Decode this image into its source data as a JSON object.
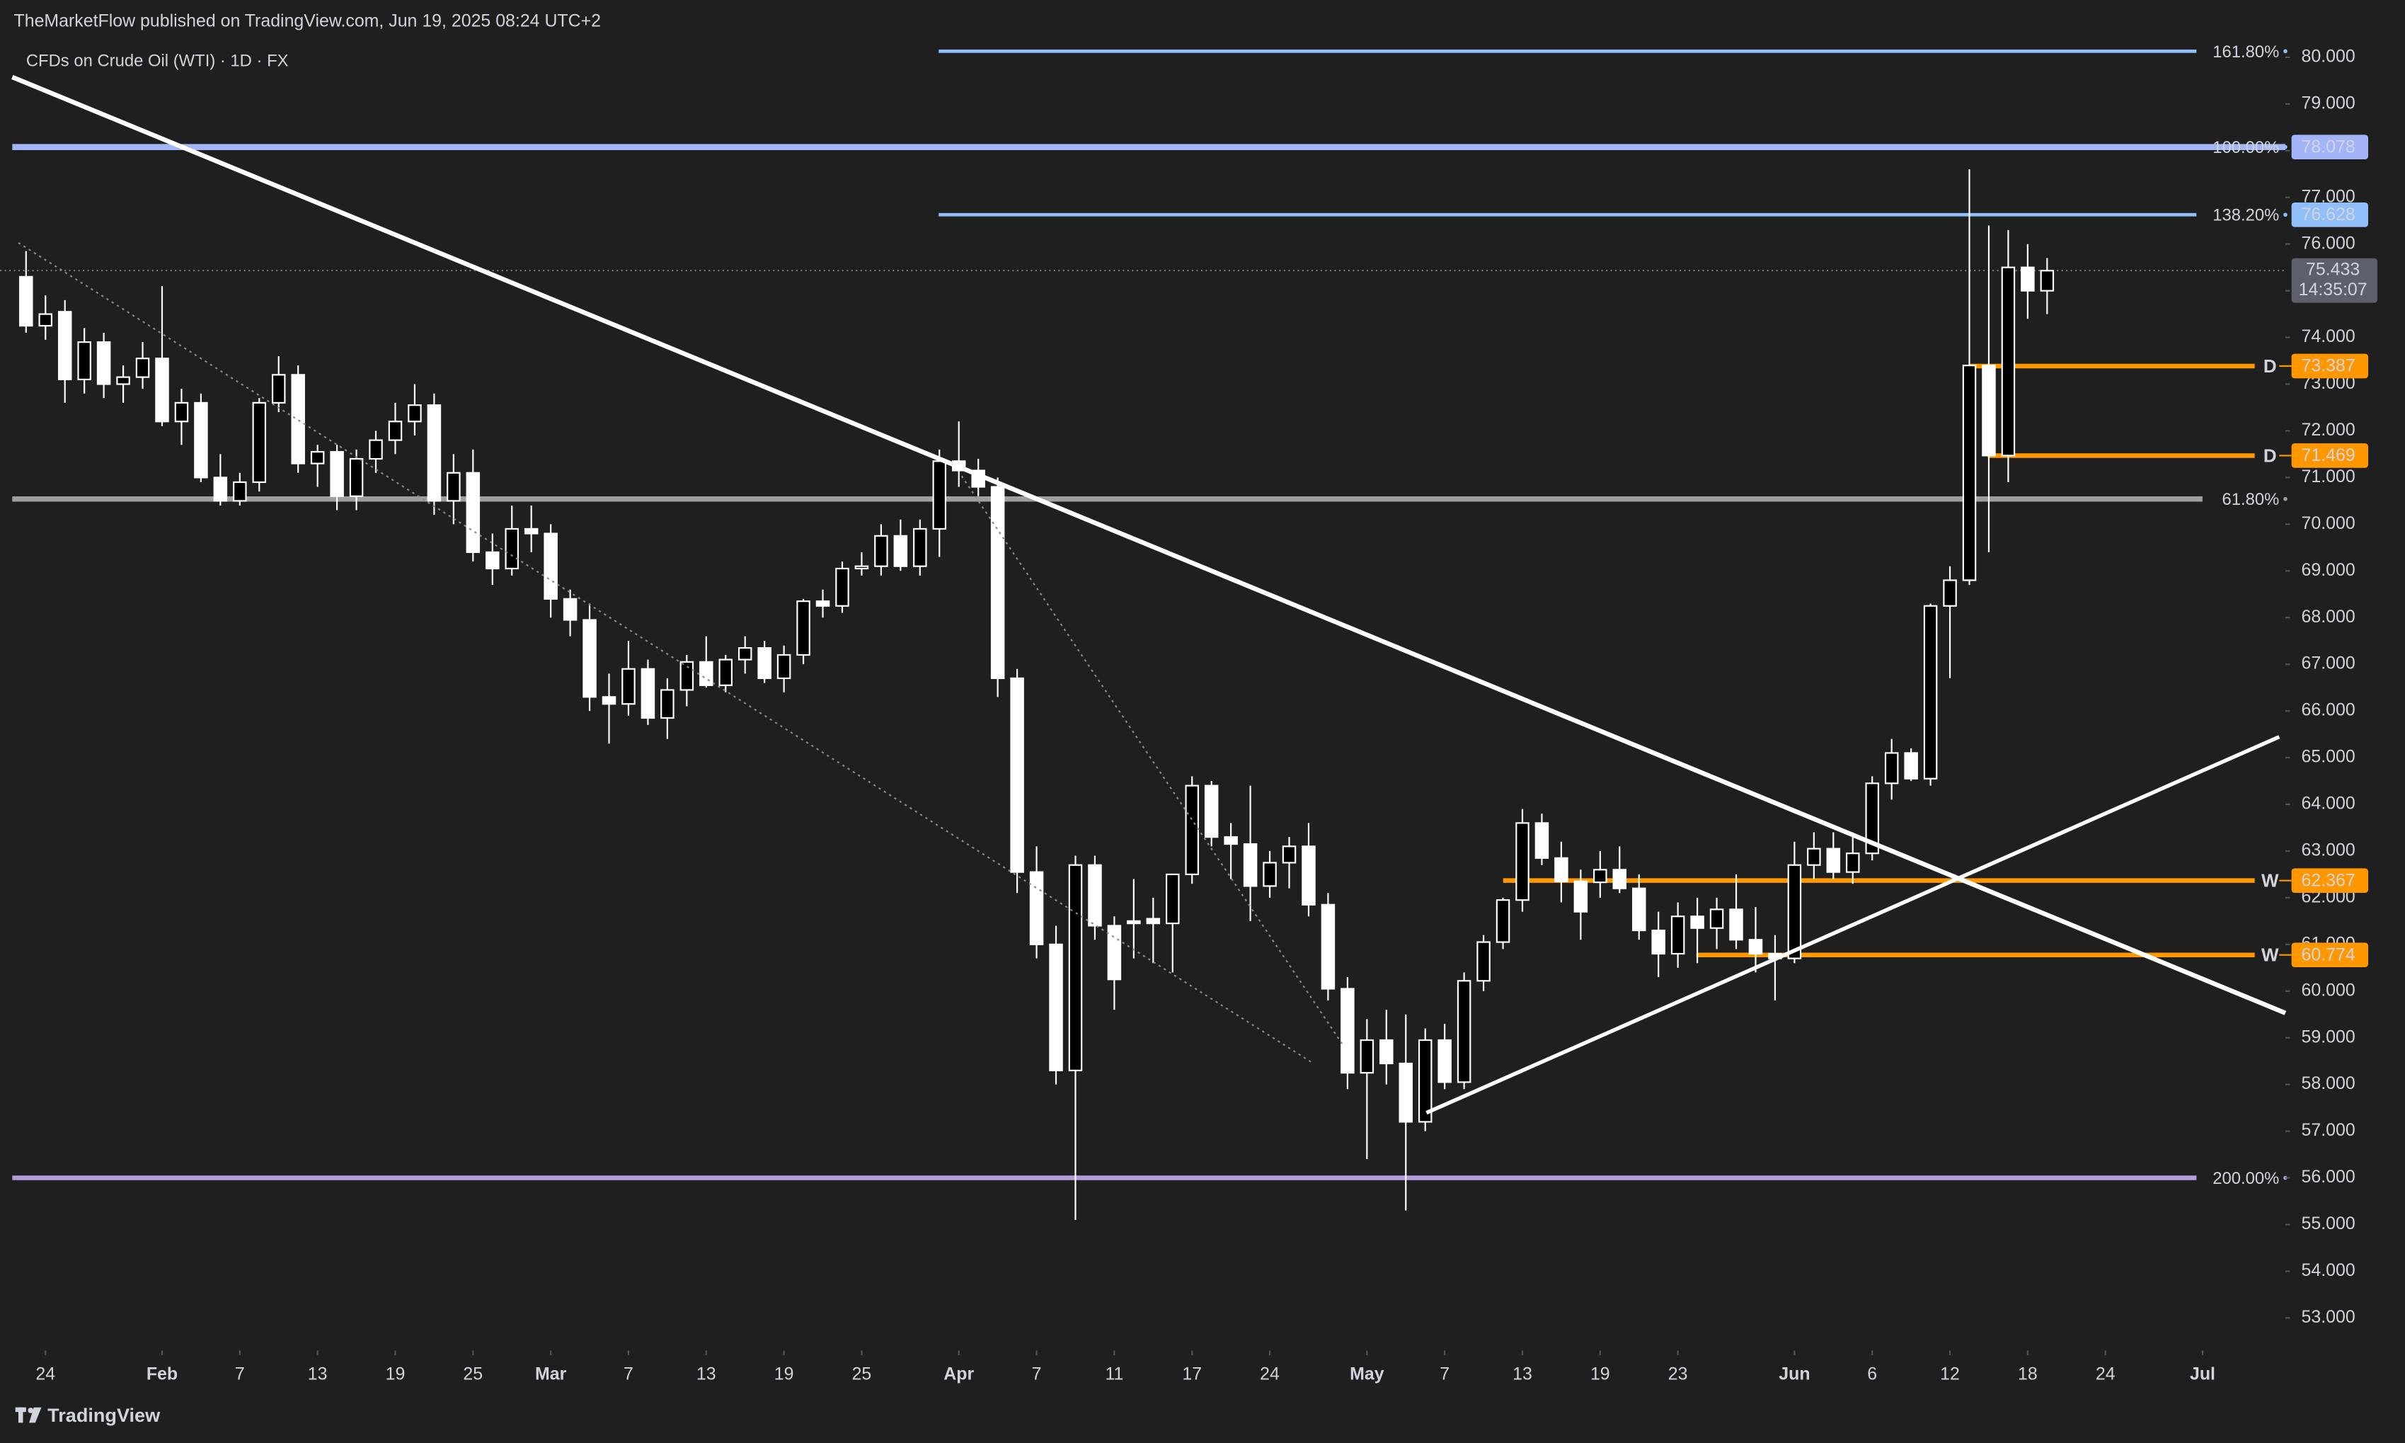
{
  "header": {
    "published": "TheMarketFlow published on TradingView.com, Jun 19, 2025 08:24 UTC+2",
    "symbol": "CFDs on Crude Oil (WTI) · 1D · FX"
  },
  "footer": {
    "brand": "TradingView"
  },
  "chart_data": {
    "type": "candlestick",
    "open": [
      75.3,
      74.25,
      74.55,
      73.1,
      73.9,
      73.0,
      73.15,
      73.55,
      72.2,
      72.6,
      71.0,
      70.5,
      70.9,
      72.6,
      73.2,
      71.3,
      71.55,
      70.6,
      71.4,
      71.8,
      72.2,
      72.55,
      70.5,
      71.1,
      69.4,
      69.05,
      69.9,
      69.8,
      68.4,
      67.95,
      66.3,
      66.15,
      66.9,
      65.85,
      66.45,
      67.05,
      66.55,
      67.1,
      67.35,
      66.7,
      67.2,
      68.35,
      68.25,
      69.05,
      69.1,
      69.75,
      69.1,
      69.9,
      71.35,
      71.15,
      70.8,
      66.7,
      62.55,
      61.0,
      58.3,
      62.7,
      61.4,
      61.5,
      61.55,
      61.45,
      62.5,
      64.4,
      63.3,
      63.15,
      62.25,
      62.75,
      63.1,
      61.85,
      60.05,
      58.25,
      58.95,
      58.45,
      57.2,
      58.95,
      58.05,
      60.22,
      61.05,
      61.95,
      63.6,
      62.85,
      62.35,
      62.33,
      62.6,
      62.2,
      61.3,
      60.8,
      61.6,
      61.35,
      61.75,
      61.1,
      60.8,
      60.7,
      62.7,
      63.05,
      62.55,
      62.95,
      64.45,
      65.1,
      64.55,
      68.25,
      68.8,
      73.4,
      71.47,
      75.5,
      75.0
    ],
    "high": [
      75.85,
      74.9,
      74.8,
      74.2,
      74.1,
      73.4,
      73.9,
      75.1,
      72.9,
      72.8,
      71.5,
      71.1,
      72.7,
      73.6,
      73.4,
      71.7,
      71.7,
      71.6,
      72.0,
      72.6,
      73.0,
      72.8,
      71.5,
      71.6,
      69.8,
      70.4,
      70.4,
      70.0,
      68.6,
      68.3,
      66.8,
      67.5,
      67.1,
      66.7,
      67.2,
      67.6,
      67.2,
      67.6,
      67.5,
      67.4,
      68.4,
      68.6,
      69.2,
      69.4,
      70.0,
      70.1,
      70.1,
      71.6,
      72.2,
      71.4,
      71.0,
      66.9,
      63.1,
      61.4,
      62.9,
      62.9,
      61.6,
      62.4,
      62.0,
      62.5,
      64.6,
      64.5,
      63.6,
      64.4,
      63.0,
      63.3,
      63.6,
      62.1,
      60.3,
      59.4,
      59.6,
      59.5,
      59.2,
      59.3,
      60.4,
      61.2,
      62.0,
      63.9,
      63.8,
      63.2,
      62.6,
      63.0,
      63.1,
      62.5,
      61.7,
      61.9,
      62.0,
      62.0,
      62.5,
      61.8,
      61.2,
      63.2,
      63.4,
      63.4,
      63.4,
      64.6,
      65.4,
      65.2,
      68.3,
      69.1,
      77.6,
      76.4,
      76.3,
      76.0,
      75.7
    ],
    "low": [
      74.1,
      73.95,
      72.6,
      72.8,
      72.7,
      72.6,
      72.9,
      72.1,
      71.7,
      70.9,
      70.4,
      70.4,
      70.7,
      72.4,
      71.1,
      70.8,
      70.3,
      70.3,
      71.1,
      71.5,
      71.9,
      70.2,
      70.0,
      69.2,
      68.7,
      68.9,
      69.4,
      68.0,
      67.6,
      66.0,
      65.3,
      65.9,
      65.7,
      65.4,
      66.1,
      66.5,
      66.4,
      66.8,
      66.6,
      66.4,
      67.0,
      68.0,
      68.1,
      68.9,
      68.9,
      69.0,
      68.9,
      69.3,
      70.8,
      70.6,
      66.3,
      62.1,
      60.7,
      58.0,
      55.1,
      61.1,
      59.6,
      60.7,
      60.6,
      60.4,
      62.3,
      63.1,
      62.4,
      61.5,
      62.0,
      62.2,
      61.6,
      59.8,
      57.9,
      56.4,
      58.0,
      55.3,
      57.0,
      57.9,
      57.9,
      60.0,
      60.9,
      61.7,
      62.7,
      61.9,
      61.1,
      62.0,
      62.1,
      61.1,
      60.3,
      60.5,
      60.6,
      60.9,
      60.9,
      60.4,
      59.8,
      60.6,
      62.4,
      62.4,
      62.3,
      62.8,
      64.1,
      64.5,
      64.4,
      66.7,
      68.7,
      69.4,
      70.9,
      74.4,
      74.5
    ],
    "close": [
      74.25,
      74.5,
      73.1,
      73.9,
      73.0,
      73.15,
      73.55,
      72.2,
      72.6,
      71.0,
      70.5,
      70.9,
      72.6,
      73.2,
      71.3,
      71.55,
      70.6,
      71.4,
      71.8,
      72.2,
      72.55,
      70.5,
      71.1,
      69.4,
      69.05,
      69.9,
      69.8,
      68.4,
      67.95,
      66.3,
      66.15,
      66.9,
      65.85,
      66.45,
      67.05,
      66.55,
      67.1,
      67.35,
      66.7,
      67.2,
      68.35,
      68.25,
      69.05,
      69.1,
      69.75,
      69.1,
      69.9,
      71.35,
      71.15,
      70.8,
      66.7,
      62.55,
      61.0,
      58.3,
      62.7,
      61.4,
      60.25,
      61.45,
      61.45,
      62.5,
      64.4,
      63.3,
      63.15,
      62.25,
      62.75,
      63.1,
      61.85,
      60.05,
      58.25,
      58.95,
      58.45,
      57.2,
      58.95,
      58.05,
      60.22,
      61.05,
      61.95,
      63.6,
      62.85,
      62.35,
      61.7,
      62.6,
      62.2,
      61.3,
      60.8,
      61.6,
      61.35,
      61.75,
      61.1,
      60.8,
      60.7,
      62.7,
      63.05,
      62.55,
      62.95,
      64.45,
      65.1,
      64.55,
      68.25,
      68.8,
      73.4,
      71.47,
      75.5,
      75.0,
      75.43
    ],
    "up_color": "#000000",
    "down_color": "#ffffff",
    "wick_color": "#ffffff",
    "ylim": [
      52.3,
      80.3
    ],
    "yticks": [
      {
        "value": 53,
        "label": "53.000"
      },
      {
        "value": 54,
        "label": "54.000"
      },
      {
        "value": 55,
        "label": "55.000"
      },
      {
        "value": 56,
        "label": "56.000"
      },
      {
        "value": 57,
        "label": "57.000"
      },
      {
        "value": 58,
        "label": "58.000"
      },
      {
        "value": 59,
        "label": "59.000"
      },
      {
        "value": 60,
        "label": "60.000"
      },
      {
        "value": 61,
        "label": "61.000"
      },
      {
        "value": 62,
        "label": "62.000"
      },
      {
        "value": 63,
        "label": "63.000"
      },
      {
        "value": 64,
        "label": "64.000"
      },
      {
        "value": 65,
        "label": "65.000"
      },
      {
        "value": 66,
        "label": "66.000"
      },
      {
        "value": 67,
        "label": "67.000"
      },
      {
        "value": 68,
        "label": "68.000"
      },
      {
        "value": 69,
        "label": "69.000"
      },
      {
        "value": 70,
        "label": "70.000"
      },
      {
        "value": 71,
        "label": "71.000"
      },
      {
        "value": 72,
        "label": "72.000"
      },
      {
        "value": 73,
        "label": "73.000"
      },
      {
        "value": 74,
        "label": "74.000"
      },
      {
        "value": 75,
        "label": "75.000"
      },
      {
        "value": 76,
        "label": "76.000"
      },
      {
        "value": 77,
        "label": "77.000"
      },
      {
        "value": 78,
        "label": "78.000"
      },
      {
        "value": 79,
        "label": "79.000"
      },
      {
        "value": 80,
        "label": "80.000"
      }
    ],
    "xlim": [
      -1.34,
      116.26
    ],
    "xticks": [
      {
        "value": 1,
        "label": "24"
      },
      {
        "value": 7,
        "label": "Feb"
      },
      {
        "value": 11,
        "label": "7"
      },
      {
        "value": 15,
        "label": "13"
      },
      {
        "value": 19,
        "label": "19"
      },
      {
        "value": 23,
        "label": "25"
      },
      {
        "value": 27,
        "label": "Mar"
      },
      {
        "value": 31,
        "label": "7"
      },
      {
        "value": 35,
        "label": "13"
      },
      {
        "value": 39,
        "label": "19"
      },
      {
        "value": 43,
        "label": "25"
      },
      {
        "value": 48,
        "label": "Apr"
      },
      {
        "value": 52,
        "label": "7"
      },
      {
        "value": 56,
        "label": "11"
      },
      {
        "value": 60,
        "label": "17"
      },
      {
        "value": 64,
        "label": "24"
      },
      {
        "value": 69,
        "label": "May"
      },
      {
        "value": 73,
        "label": "7"
      },
      {
        "value": 77,
        "label": "13"
      },
      {
        "value": 81,
        "label": "19"
      },
      {
        "value": 85,
        "label": "23"
      },
      {
        "value": 91,
        "label": "Jun"
      },
      {
        "value": 95,
        "label": "6"
      },
      {
        "value": 99,
        "label": "12"
      },
      {
        "value": 103,
        "label": "18"
      },
      {
        "value": 107,
        "label": "24"
      },
      {
        "value": 112,
        "label": "Jul"
      }
    ],
    "levels": [
      {
        "label": "161.80%",
        "value": 80.13,
        "color": "#90bff9"
      },
      {
        "label": "100.00%",
        "value": 78.078,
        "color": "#a3b4f7"
      },
      {
        "label": "138.20%",
        "value": 76.628,
        "color": "#90bff9"
      },
      {
        "label": "61.80%",
        "value": 70.54,
        "color": "#9e9e9e"
      },
      {
        "label": "200.00%",
        "value": 56.0,
        "color": "#b39ddb"
      }
    ],
    "orders": [
      {
        "label": "D",
        "value": 73.387,
        "color": "#ff9800"
      },
      {
        "label": "D",
        "value": 71.469,
        "color": "#ff9800"
      },
      {
        "label": "W",
        "value": 62.367,
        "color": "#ff9800"
      },
      {
        "label": "W",
        "value": 60.774,
        "color": "#ff9800"
      }
    ],
    "last": {
      "value": 75.433,
      "countdown": "14:35:07",
      "color": "#5d606b"
    }
  }
}
